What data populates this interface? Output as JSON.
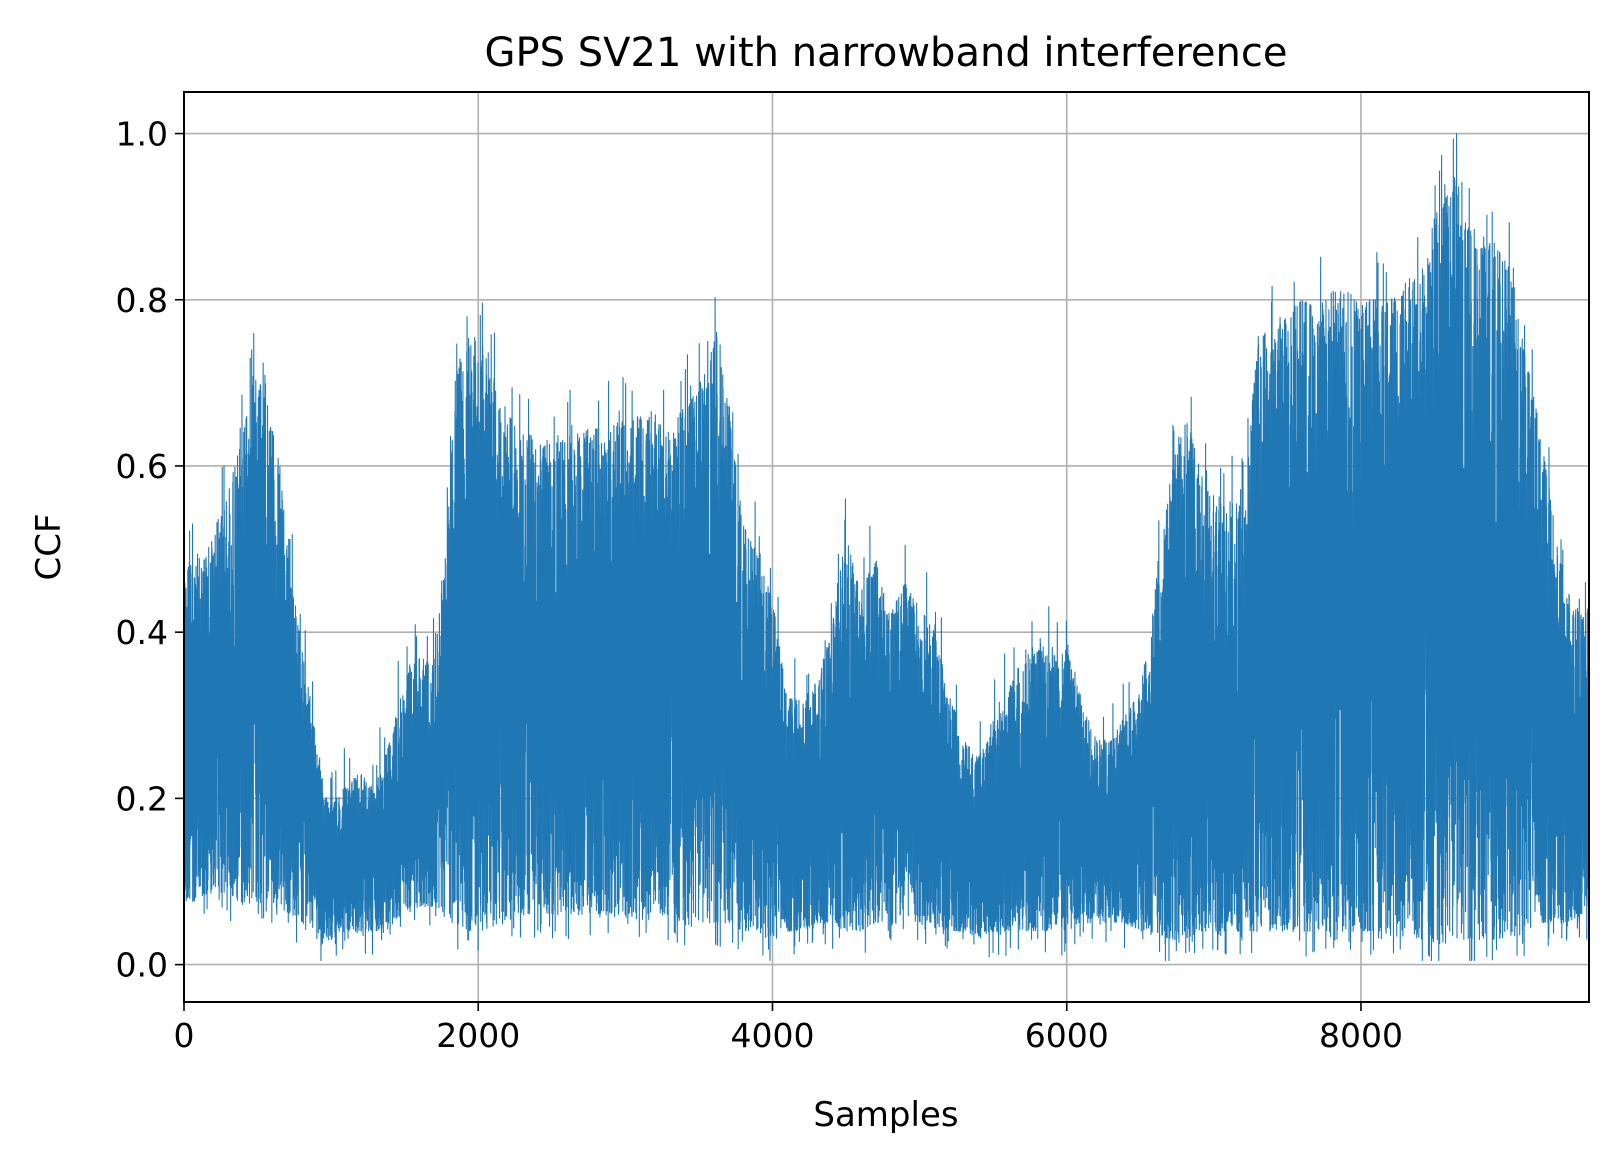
{
  "chart_data": {
    "type": "line",
    "title": "GPS SV21 with narrowband interference",
    "xlabel": "Samples",
    "ylabel": "CCF",
    "xlim": [
      0,
      9550
    ],
    "ylim": [
      -0.045,
      1.05
    ],
    "x_ticks": [
      0,
      2000,
      4000,
      6000,
      8000
    ],
    "x_tick_labels": [
      "0",
      "2000",
      "4000",
      "6000",
      "8000"
    ],
    "y_ticks": [
      0.0,
      0.2,
      0.4,
      0.6,
      0.8,
      1.0
    ],
    "y_tick_labels": [
      "0.0",
      "0.2",
      "0.4",
      "0.6",
      "0.8",
      "1.0"
    ],
    "grid": true,
    "series_color": "#1f77b4",
    "series": [
      {
        "n_points": 9550,
        "envelope_x": [
          0,
          100,
          200,
          300,
          420,
          480,
          560,
          650,
          720,
          800,
          900,
          950,
          1000,
          1100,
          1200,
          1300,
          1400,
          1500,
          1600,
          1700,
          1780,
          1850,
          1950,
          2050,
          2150,
          2300,
          2500,
          2700,
          2900,
          3100,
          3300,
          3450,
          3550,
          3620,
          3700,
          3800,
          3900,
          4000,
          4100,
          4200,
          4300,
          4400,
          4500,
          4600,
          4700,
          4800,
          4900,
          5000,
          5100,
          5200,
          5300,
          5400,
          5500,
          5600,
          5700,
          5800,
          5900,
          6000,
          6100,
          6200,
          6300,
          6400,
          6500,
          6600,
          6700,
          6800,
          6900,
          7000,
          7100,
          7200,
          7300,
          7400,
          7500,
          7600,
          7700,
          7800,
          7900,
          8000,
          8100,
          8200,
          8300,
          8400,
          8500,
          8600,
          8650,
          8700,
          8800,
          8900,
          9000,
          9100,
          9200,
          9300,
          9400,
          9500,
          9550
        ],
        "upper_envelope": [
          0.49,
          0.47,
          0.52,
          0.57,
          0.65,
          0.72,
          0.68,
          0.6,
          0.48,
          0.38,
          0.28,
          0.21,
          0.19,
          0.22,
          0.23,
          0.21,
          0.27,
          0.35,
          0.37,
          0.36,
          0.5,
          0.72,
          0.76,
          0.74,
          0.68,
          0.64,
          0.63,
          0.64,
          0.65,
          0.66,
          0.65,
          0.68,
          0.72,
          0.76,
          0.67,
          0.53,
          0.49,
          0.44,
          0.32,
          0.32,
          0.34,
          0.4,
          0.52,
          0.45,
          0.49,
          0.42,
          0.46,
          0.43,
          0.4,
          0.33,
          0.27,
          0.25,
          0.28,
          0.33,
          0.37,
          0.38,
          0.37,
          0.38,
          0.32,
          0.27,
          0.27,
          0.3,
          0.33,
          0.44,
          0.58,
          0.67,
          0.6,
          0.55,
          0.56,
          0.55,
          0.76,
          0.76,
          0.78,
          0.8,
          0.79,
          0.81,
          0.81,
          0.8,
          0.8,
          0.8,
          0.81,
          0.84,
          0.9,
          0.93,
          0.96,
          0.9,
          0.86,
          0.87,
          0.84,
          0.75,
          0.66,
          0.55,
          0.45,
          0.42,
          0.43
        ],
        "lower_envelope": [
          0.07,
          0.08,
          0.09,
          0.08,
          0.07,
          0.08,
          0.08,
          0.07,
          0.06,
          0.05,
          0.04,
          0.03,
          0.03,
          0.04,
          0.04,
          0.04,
          0.05,
          0.06,
          0.07,
          0.07,
          0.06,
          0.05,
          0.04,
          0.04,
          0.05,
          0.06,
          0.06,
          0.06,
          0.06,
          0.06,
          0.06,
          0.05,
          0.05,
          0.05,
          0.05,
          0.04,
          0.04,
          0.03,
          0.04,
          0.04,
          0.05,
          0.05,
          0.04,
          0.04,
          0.05,
          0.05,
          0.05,
          0.05,
          0.04,
          0.04,
          0.04,
          0.03,
          0.04,
          0.04,
          0.04,
          0.04,
          0.04,
          0.04,
          0.05,
          0.05,
          0.05,
          0.05,
          0.04,
          0.04,
          0.03,
          0.03,
          0.04,
          0.04,
          0.04,
          0.04,
          0.04,
          0.04,
          0.04,
          0.04,
          0.04,
          0.04,
          0.04,
          0.04,
          0.04,
          0.04,
          0.04,
          0.03,
          0.03,
          0.03,
          0.03,
          0.03,
          0.03,
          0.03,
          0.03,
          0.04,
          0.05,
          0.05,
          0.05,
          0.06,
          0.06
        ],
        "peak_x": 8650,
        "peak_value": 1.0
      }
    ]
  }
}
